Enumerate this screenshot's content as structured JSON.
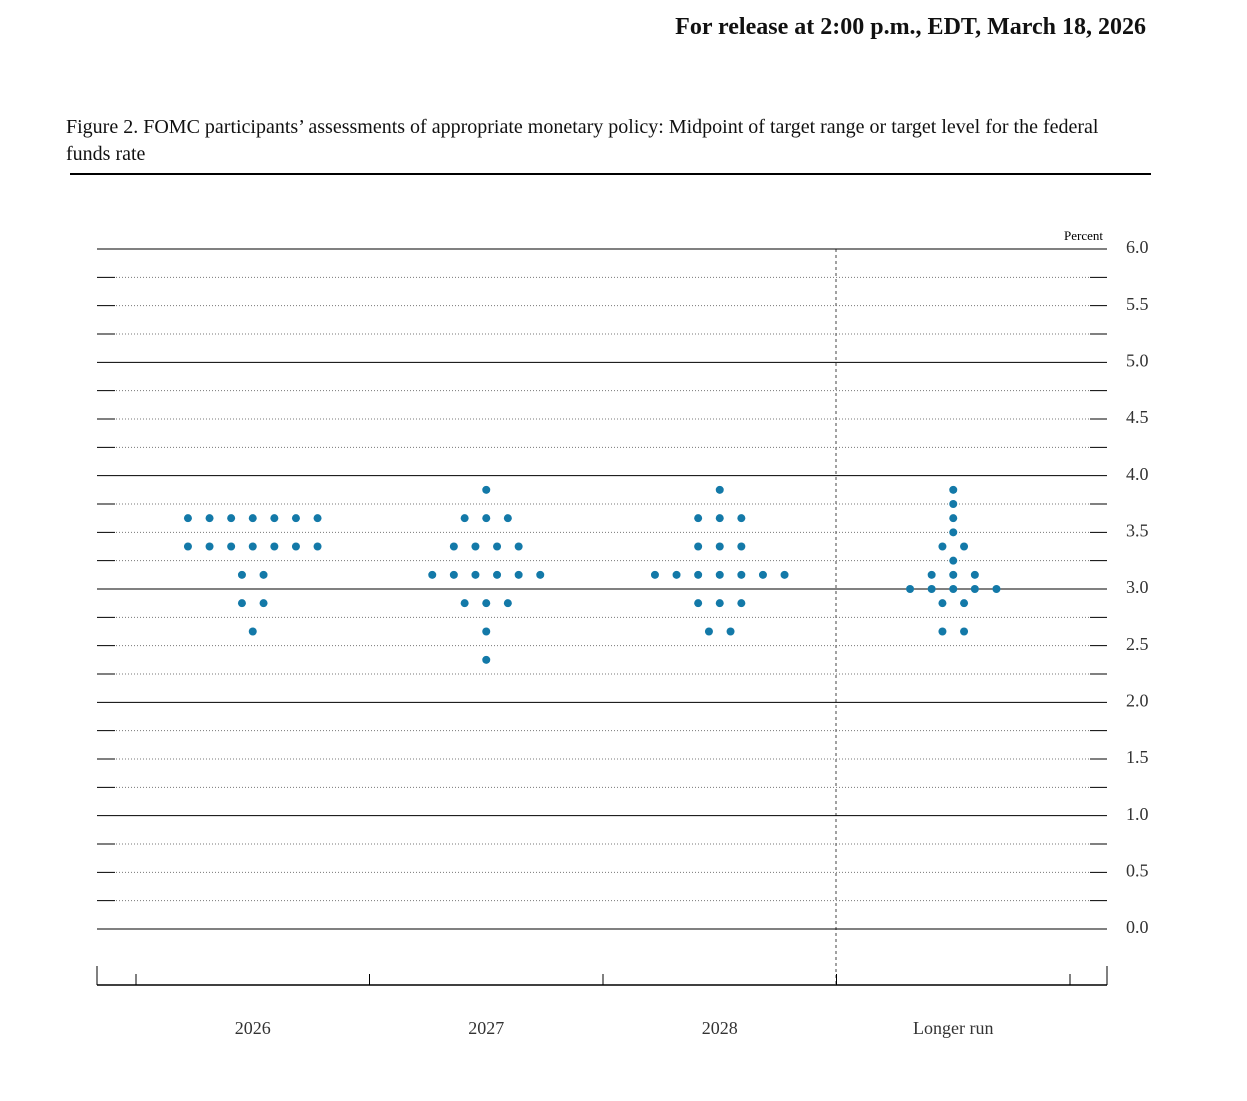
{
  "release": "For release at 2:00 p.m., EDT, March 18, 2026",
  "chart_data": {
    "type": "dotplot",
    "title": "Figure 2. FOMC participants’ assessments of appropriate monetary policy: Midpoint of target range or target level for the federal funds rate",
    "y_unit_label": "Percent",
    "categories": [
      "2026",
      "2027",
      "2028",
      "Longer run"
    ],
    "values": [
      [
        3.625,
        3.625,
        3.625,
        3.625,
        3.625,
        3.625,
        3.625,
        3.375,
        3.375,
        3.375,
        3.375,
        3.375,
        3.375,
        3.375,
        3.125,
        3.125,
        2.875,
        2.875,
        2.625
      ],
      [
        3.875,
        3.625,
        3.625,
        3.625,
        3.375,
        3.375,
        3.375,
        3.375,
        3.125,
        3.125,
        3.125,
        3.125,
        3.125,
        3.125,
        2.875,
        2.875,
        2.875,
        2.625,
        2.375
      ],
      [
        3.875,
        3.625,
        3.625,
        3.625,
        3.375,
        3.375,
        3.375,
        3.125,
        3.125,
        3.125,
        3.125,
        3.125,
        3.125,
        3.125,
        2.875,
        2.875,
        2.875,
        2.625,
        2.625
      ],
      [
        3.875,
        3.75,
        3.625,
        3.5,
        3.375,
        3.375,
        3.25,
        3.125,
        3.125,
        3.125,
        3,
        3,
        3,
        3,
        3,
        2.875,
        2.875,
        2.625,
        2.625
      ]
    ],
    "color": "#1379a8",
    "ylim": [
      0,
      6
    ],
    "yticks": [
      {
        "value": 0,
        "label": "0.0"
      },
      {
        "value": 0.5,
        "label": "0.5"
      },
      {
        "value": 1,
        "label": "1.0"
      },
      {
        "value": 1.5,
        "label": "1.5"
      },
      {
        "value": 2,
        "label": "2.0"
      },
      {
        "value": 2.5,
        "label": "2.5"
      },
      {
        "value": 3,
        "label": "3.0"
      },
      {
        "value": 3.5,
        "label": "3.5"
      },
      {
        "value": 4,
        "label": "4.0"
      },
      {
        "value": 4.5,
        "label": "4.5"
      },
      {
        "value": 5,
        "label": "5.0"
      },
      {
        "value": 5.5,
        "label": "5.5"
      },
      {
        "value": 6,
        "label": "6.0"
      }
    ],
    "minor_yticks": [
      0,
      0.25,
      0.5,
      0.75,
      1,
      1.25,
      1.5,
      1.75,
      2,
      2.25,
      2.5,
      2.75,
      3,
      3.25,
      3.5,
      3.75,
      4,
      4.25,
      4.5,
      4.75,
      5,
      5.25,
      5.5,
      5.75,
      6
    ],
    "grid": true
  }
}
